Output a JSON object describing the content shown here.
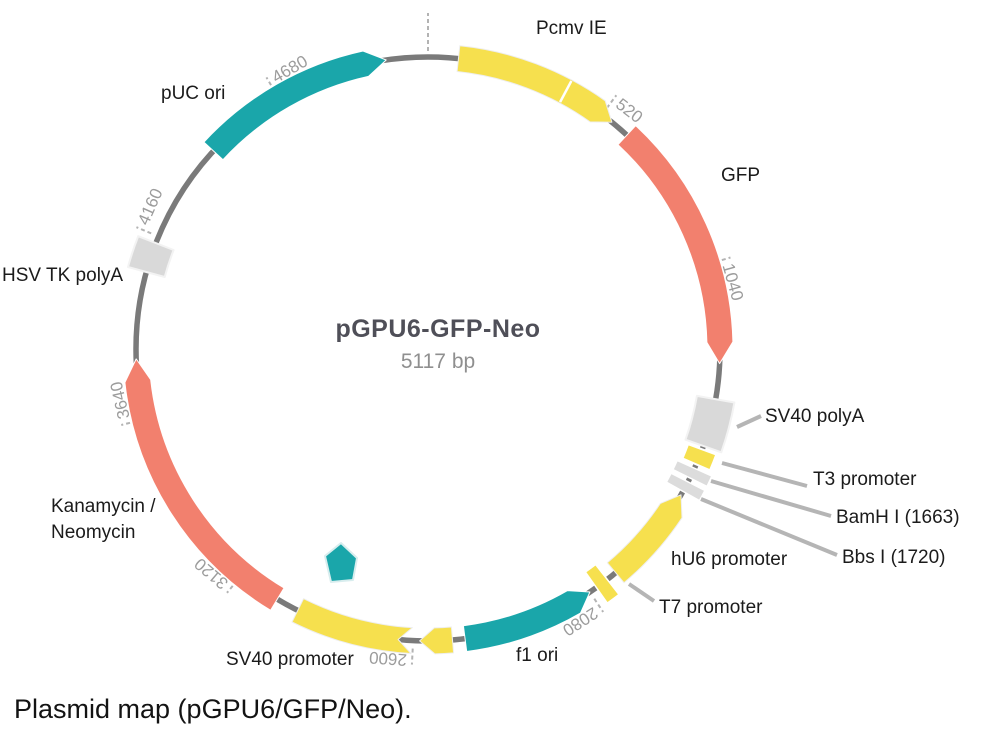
{
  "plasmid": {
    "name": "pGPU6-GFP-Neo",
    "size_label": "5117 bp",
    "length_bp": 5117
  },
  "caption": "Plasmid map (pGPU6/GFP/Neo).",
  "colors": {
    "backbone": "#7a7a7a",
    "cds": "#f2806e",
    "promoter": "#f6e04e",
    "ori": "#1aa6aa",
    "block": "#d9d9d9",
    "site": "#dcdcdc",
    "leader": "#b5b5b5",
    "tick": "#b3b3b3",
    "tick_text": "#9c9c9c",
    "label_text": "#1b1b1b",
    "title": "#4f4f58",
    "subtitle": "#8f8f8f",
    "divider": "#ffffff",
    "pentagon": "#1aa6aa"
  },
  "ticks": {
    "interval": 520,
    "labeled": [
      520,
      1040,
      2080,
      2600,
      3120,
      3640,
      4160,
      4680
    ],
    "origin_tick_bp": 0
  },
  "features": [
    {
      "id": "pcmv_ie",
      "label": "Pcmv IE",
      "type": "promoter",
      "start": 85,
      "end": 555,
      "arrow": "cw",
      "tip_bp": 50,
      "divider_bp": 400
    },
    {
      "id": "gfp",
      "label": "GFP",
      "type": "cds",
      "start": 610,
      "end": 1320,
      "arrow": "cw",
      "tip_bp": 60
    },
    {
      "id": "sv40_polya",
      "label": "SV40 polyA",
      "type": "block",
      "start": 1420,
      "end": 1555,
      "arrow": "none",
      "leader": true
    },
    {
      "id": "t3_promoter",
      "label": "T3 promoter",
      "type": "thinband",
      "start": 1565,
      "end": 1610,
      "arrow": "none",
      "leader": true
    },
    {
      "id": "bamhi",
      "label": "BamH I (1663)",
      "type": "site",
      "start": 1622,
      "end": 1652,
      "arrow": "none",
      "leader": true
    },
    {
      "id": "bbsi",
      "label": "Bbs I (1720)",
      "type": "site",
      "start": 1664,
      "end": 1694,
      "arrow": "none",
      "leader": true
    },
    {
      "id": "hu6_promoter",
      "label": "hU6 promoter",
      "type": "promoter",
      "start": 1705,
      "end": 1990,
      "arrow": "ccw",
      "tip_bp": 52
    },
    {
      "id": "t7_promoter",
      "label": "T7 promoter",
      "type": "siteband",
      "start": 2020,
      "end": 2058,
      "arrow": "none",
      "leader": true
    },
    {
      "id": "f1_ori",
      "label": "f1 ori",
      "type": "ori",
      "start": 2080,
      "end": 2455,
      "arrow": "ccw",
      "tip_bp": 52
    },
    {
      "id": "sv40_ori_arrow",
      "label": "",
      "type": "promoter",
      "start": 2490,
      "end": 2582,
      "arrow": "cw",
      "tip_bp": 42
    },
    {
      "id": "sv40_promoter",
      "label": "SV40 promoter",
      "type": "promoter",
      "start": 2604,
      "end": 2935,
      "arrow": "none",
      "notch_start": true
    },
    {
      "id": "kanamycin_neomycin",
      "label": "Kanamycin /\nNeomycin",
      "type": "cds",
      "start": 3000,
      "end": 3810,
      "arrow": "cw",
      "tip_bp": 62
    },
    {
      "id": "hsv_tk_polya",
      "label": "HSV TK polyA",
      "type": "block",
      "start": 4055,
      "end": 4140,
      "arrow": "none"
    },
    {
      "id": "puc_ori",
      "label": "pUC ori",
      "type": "ori",
      "start": 4445,
      "end": 5000,
      "arrow": "cw",
      "tip_bp": 58
    }
  ]
}
